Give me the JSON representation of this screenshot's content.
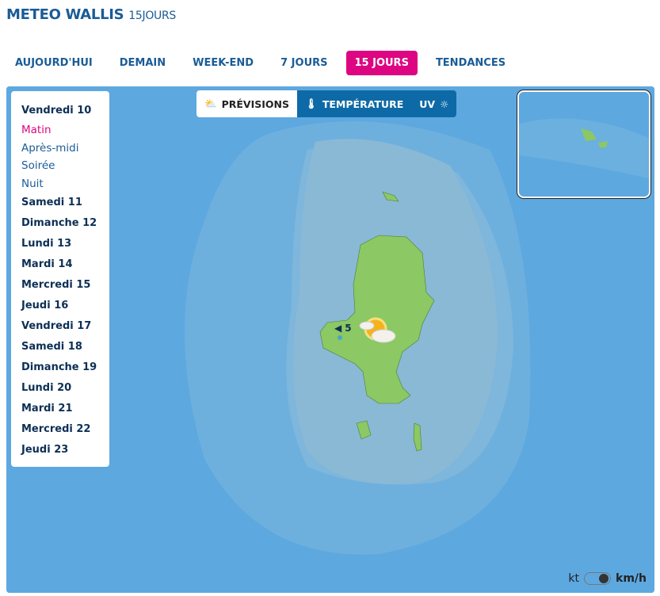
{
  "header": {
    "title": "METEO WALLIS",
    "subtitle": "15JOURS"
  },
  "tabs": [
    {
      "label": "AUJOURD'HUI"
    },
    {
      "label": "DEMAIN"
    },
    {
      "label": "WEEK-END"
    },
    {
      "label": "7 JOURS"
    },
    {
      "label": "15 JOURS",
      "active": true
    },
    {
      "label": "TENDANCES"
    }
  ],
  "modes": {
    "forecast": "PRÉVISIONS",
    "temperature": "TEMPÉRATURE",
    "uv": "UV"
  },
  "days": {
    "current": "Vendredi 10",
    "slots": [
      "Matin",
      "Après-midi",
      "Soirée",
      "Nuit"
    ],
    "active_slot": "Matin",
    "others": [
      "Samedi 11",
      "Dimanche 12",
      "Lundi 13",
      "Mardi 14",
      "Mercredi 15",
      "Jeudi 16",
      "Vendredi 17",
      "Samedi 18",
      "Dimanche 19",
      "Lundi 20",
      "Mardi 21",
      "Mercredi 22",
      "Jeudi 23"
    ]
  },
  "map": {
    "wind_speed": "5",
    "weather_icon": "sun-behind-cloud-icon",
    "colors": {
      "sea": "#5ea8e0",
      "land": "#8cc863",
      "accent": "#dd0582"
    }
  },
  "units": {
    "left": "kt",
    "right": "km/h",
    "selected": "km/h"
  }
}
